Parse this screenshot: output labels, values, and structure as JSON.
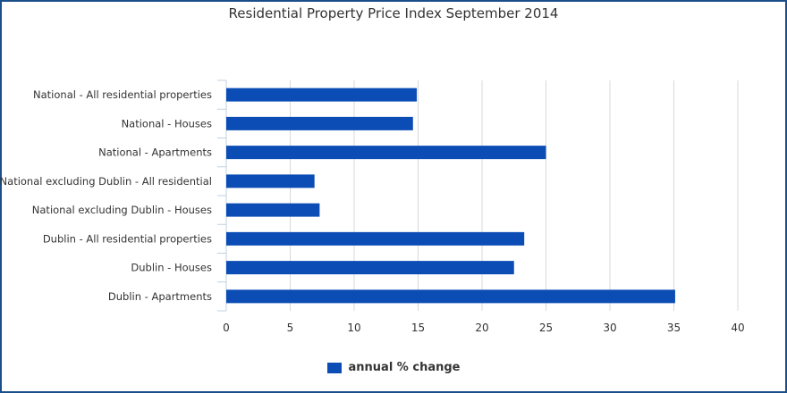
{
  "colors": {
    "bar": "#0b4cb5",
    "grid": "#d8d8d8",
    "axis": "#c0d0e0",
    "frame": "#1b4f8c",
    "text": "#333333"
  },
  "chart_data": {
    "type": "bar",
    "orientation": "horizontal",
    "title": "Residential Property Price Index September 2014",
    "categories": [
      "National - All residential properties",
      "National - Houses",
      "National - Apartments",
      "National excluding Dublin - All residential",
      "National excluding Dublin - Houses",
      "Dublin - All residential properties",
      "Dublin - Houses",
      "Dublin - Apartments"
    ],
    "series": [
      {
        "name": "annual % change",
        "values": [
          14.9,
          14.6,
          25.0,
          6.9,
          7.3,
          23.3,
          22.5,
          35.1
        ]
      }
    ],
    "xlim": [
      0,
      40
    ],
    "xticks": [
      0,
      5,
      10,
      15,
      20,
      25,
      30,
      35,
      40
    ],
    "grid": true,
    "legend": "bottom-center"
  }
}
